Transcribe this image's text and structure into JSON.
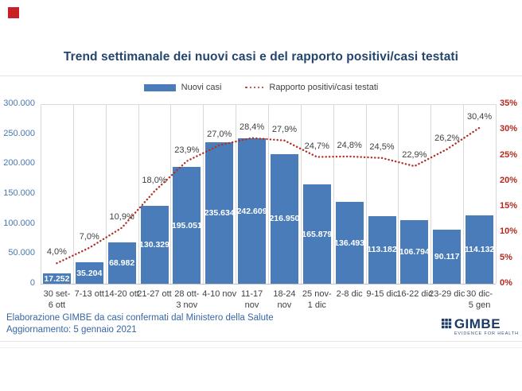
{
  "footer": {
    "line1": "Elaborazione GIMBE da casi confermati dal Ministero della Salute",
    "line2": "Aggiornamento: 5 gennaio 2021"
  },
  "logo": {
    "name": "GIMBE",
    "tagline": "EVIDENCE FOR HEALTH"
  },
  "colors": {
    "bar": "#4a7cba",
    "line": "#b03028",
    "left_axis_text": "#4878b0",
    "right_axis_text": "#b3281e",
    "title_text": "#24456e",
    "grid": "#d9d9d9"
  },
  "chart_data": {
    "type": "bar",
    "subtype": "combo-bar-line",
    "title": "Trend settimanale dei nuovi casi e del rapporto positivi/casi testati",
    "grid": "vertical",
    "legend_position": "top",
    "categories": [
      [
        "30 set-",
        "6 ott"
      ],
      [
        "7-13 ott"
      ],
      [
        "14-20 ott"
      ],
      [
        "21-27 ott"
      ],
      [
        "28 ott-",
        "3 nov"
      ],
      [
        "4-10 nov"
      ],
      [
        "11-17",
        "nov"
      ],
      [
        "18-24",
        "nov"
      ],
      [
        "25 nov-",
        "1 dic"
      ],
      [
        "2-8 dic"
      ],
      [
        "9-15 dic"
      ],
      [
        "16-22 dic"
      ],
      [
        "23-29 dic"
      ],
      [
        "30 dic-",
        "5 gen"
      ]
    ],
    "series": [
      {
        "name": "Nuovi casi",
        "type": "bar",
        "axis": "left",
        "values": [
          17252,
          35204,
          68982,
          130329,
          195051,
          235634,
          242609,
          216950,
          165879,
          136493,
          113182,
          106794,
          90117,
          114132
        ],
        "labels": [
          "17.252",
          "35.204",
          "68.982",
          "130.329",
          "195.051",
          "235.634",
          "242.609",
          "216.950",
          "165.879",
          "136.493",
          "113.182",
          "106.794",
          "90.117",
          "114.132"
        ]
      },
      {
        "name": "Rapporto positivi/casi testati",
        "type": "line",
        "style": "dotted",
        "axis": "right",
        "values": [
          4.0,
          7.0,
          10.9,
          18.0,
          23.9,
          27.0,
          28.4,
          27.9,
          24.7,
          24.8,
          24.5,
          22.9,
          26.2,
          30.4
        ],
        "labels": [
          "4,0%",
          "7,0%",
          "10,9%",
          "18,0%",
          "23,9%",
          "27,0%",
          "28,4%",
          "27,9%",
          "24,7%",
          "24,8%",
          "24,5%",
          "22,9%",
          "26,2%",
          "30,4%"
        ]
      }
    ],
    "left_axis": {
      "min": 0,
      "max": 300000,
      "ticks": [
        "0",
        "50.000",
        "100.000",
        "150.000",
        "200.000",
        "250.000",
        "300.000"
      ]
    },
    "right_axis": {
      "min": 0,
      "max": 35,
      "ticks": [
        "0%",
        "5%",
        "10%",
        "15%",
        "20%",
        "25%",
        "30%",
        "35%"
      ]
    }
  }
}
